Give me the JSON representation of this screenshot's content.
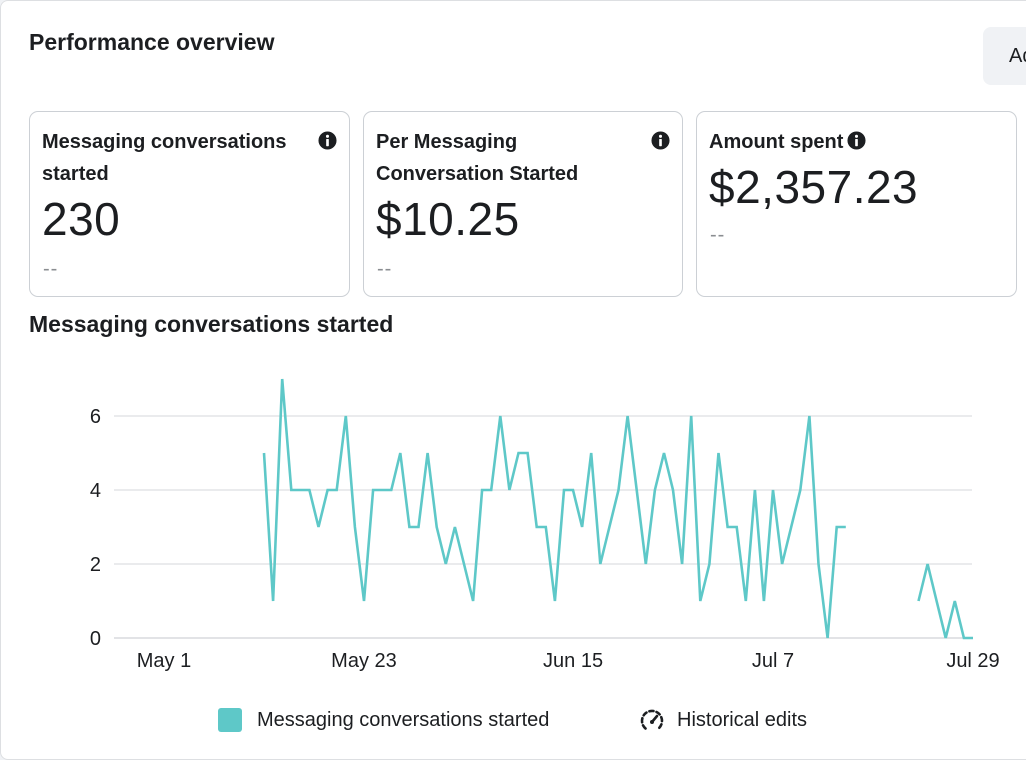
{
  "header": {
    "title": "Performance overview",
    "button_label": "Ad"
  },
  "metrics": [
    {
      "label": "Messaging conversations started",
      "value": "230",
      "comparison": "--",
      "icon": "info-icon"
    },
    {
      "label": "Per Messaging Conversation Started",
      "value": "$10.25",
      "comparison": "--",
      "icon": "info-icon"
    },
    {
      "label": "Amount spent",
      "value": "$2,357.23",
      "comparison": "--",
      "icon": "info-icon"
    }
  ],
  "chart_title": "Messaging conversations started",
  "chart_data": {
    "type": "line",
    "title": "Messaging conversations started",
    "xlabel": "",
    "ylabel": "",
    "x_tick_labels": [
      "May 1",
      "May 23",
      "Jun 15",
      "Jul 7",
      "Jul 29"
    ],
    "y_tick_labels": [
      "0",
      "2",
      "4",
      "6"
    ],
    "ylim": [
      0,
      7
    ],
    "grid": true,
    "legend_position": "bottom",
    "series": [
      {
        "name": "Messaging conversations started",
        "color": "#5ec8c8",
        "segments": [
          {
            "start_date": "May 12",
            "values": [
              5,
              1,
              7,
              4,
              4,
              4,
              3,
              4,
              4,
              6,
              3,
              1,
              4,
              4,
              4,
              5,
              3,
              3,
              5,
              3,
              2,
              3,
              2,
              1,
              4,
              4,
              6,
              4,
              5,
              5,
              3,
              3,
              1,
              4,
              4,
              3,
              5,
              2,
              3,
              4,
              6,
              4,
              2,
              4,
              5,
              4,
              2,
              6,
              1,
              2,
              5,
              3,
              3,
              1,
              4,
              1,
              4,
              2,
              3,
              4,
              6,
              2,
              0,
              3,
              3
            ]
          },
          {
            "start_date": "Jul 23",
            "values": [
              1,
              2,
              1,
              0,
              1,
              0,
              0
            ]
          }
        ]
      }
    ]
  },
  "legend": {
    "series_label": "Messaging conversations started",
    "series_color": "#5ec8c8",
    "historical_label": "Historical edits",
    "historical_icon": "speedometer-icon"
  }
}
